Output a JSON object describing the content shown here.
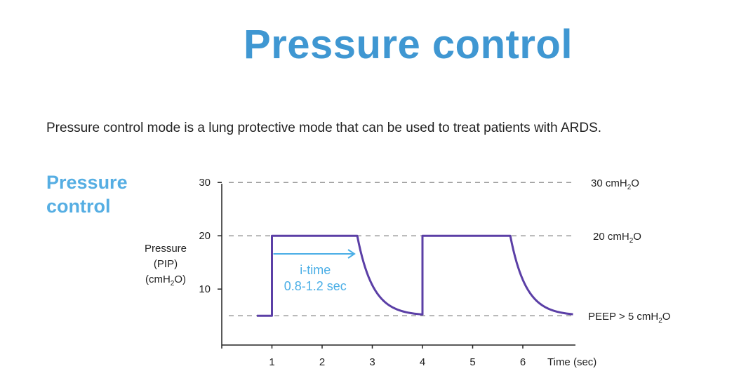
{
  "title": "Pressure control",
  "intro": "Pressure control mode is a lung protective mode that can be used to treat patients with ARDS.",
  "section_title": [
    "Pressure",
    "control"
  ],
  "chart_data": {
    "type": "line",
    "ylabel": [
      "Pressure",
      "(PIP)",
      "(cmH",
      "2",
      "O)"
    ],
    "xlabel": "Time (sec)",
    "x_ticks": [
      "1",
      "2",
      "3",
      "4",
      "5",
      "6"
    ],
    "y_ticks": [
      "10",
      "20",
      "30"
    ],
    "xlim": [
      0,
      7
    ],
    "ylim": [
      -0.5,
      30
    ],
    "reference_lines": [
      {
        "y": 30,
        "label": "30 cmH",
        "sub": "2",
        "tail": "O"
      },
      {
        "y": 20,
        "label": "20 cmH",
        "sub": "2",
        "tail": "O"
      },
      {
        "y": 5,
        "label": "PEEP > 5 cmH",
        "sub": "2",
        "tail": "O"
      }
    ],
    "waveform": {
      "color": "#5b3fa6",
      "peep": 5,
      "pip": 20,
      "breaths": [
        {
          "start": 1.0,
          "end": 2.7,
          "next": 4.0
        },
        {
          "start": 4.0,
          "end": 5.75,
          "next": 7.1
        }
      ],
      "lead_in_start": 0.7
    },
    "annotation": {
      "line1": "i-time",
      "line2": "0.8-1.2 sec",
      "arrow_from": 1.0,
      "arrow_to": 2.7,
      "color": "#4aaee6"
    }
  }
}
